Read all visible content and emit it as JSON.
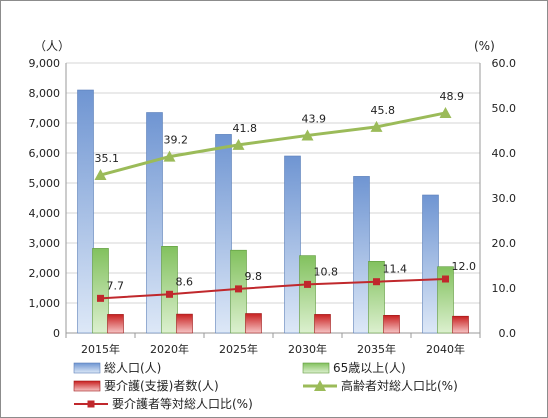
{
  "chart_data": {
    "type": "bar",
    "categories": [
      "2015年",
      "2020年",
      "2025年",
      "2030年",
      "2035年",
      "2040年"
    ],
    "y_left_unit": "（人）",
    "y_right_unit": "(%)",
    "y_left_ticks": [
      "0",
      "1,000",
      "2,000",
      "3,000",
      "4,000",
      "5,000",
      "6,000",
      "7,000",
      "8,000",
      "9,000"
    ],
    "y_right_ticks": [
      "0.0",
      "10.0",
      "20.0",
      "30.0",
      "40.0",
      "50.0",
      "60.0"
    ],
    "ylim_left": [
      0,
      9000
    ],
    "ylim_right": [
      0,
      60
    ],
    "grid": true,
    "legend_position": "bottom",
    "bar_series": [
      {
        "name": "総人口(人)",
        "values": [
          8100,
          7350,
          6620,
          5900,
          5220,
          4600
        ],
        "color": "#8fb1e0"
      },
      {
        "name": "65歳以上(人)",
        "values": [
          2820,
          2890,
          2760,
          2580,
          2390,
          2210
        ],
        "color": "#9fd27e"
      },
      {
        "name": "要介護(支援)者数(人)",
        "values": [
          620,
          630,
          650,
          620,
          590,
          560
        ],
        "color": "#d42a2a"
      }
    ],
    "line_series": [
      {
        "name": "高齢者対総人口比(%)",
        "values": [
          35.1,
          39.2,
          41.8,
          43.9,
          45.8,
          48.9
        ],
        "labels": [
          "35.1",
          "39.2",
          "41.8",
          "43.9",
          "45.8",
          "48.9"
        ],
        "color": "#9bbb59",
        "marker": "triangle"
      },
      {
        "name": "要介護者等対総人口比(%)",
        "values": [
          7.7,
          8.6,
          9.8,
          10.8,
          11.4,
          12.0
        ],
        "labels": [
          "7.7",
          "8.6",
          "9.8",
          "10.8",
          "11.4",
          "12.0"
        ],
        "color": "#c0282c",
        "marker": "square"
      }
    ]
  }
}
